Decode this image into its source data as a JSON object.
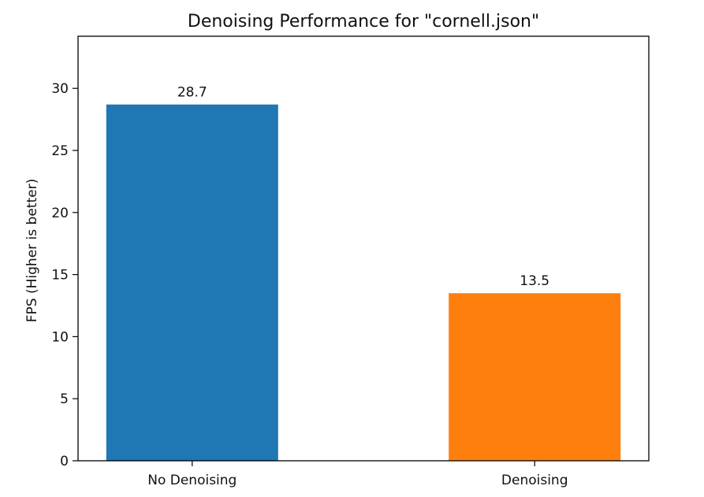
{
  "chart_data": {
    "type": "bar",
    "title": "Denoising Performance for \"cornell.json\"",
    "xlabel": "",
    "ylabel": "FPS (Higher is better)",
    "categories": [
      "No Denoising",
      "Denoising"
    ],
    "values": [
      28.7,
      13.5
    ],
    "data_labels": [
      "28.7",
      "13.5"
    ],
    "colors": [
      "#1f77b4",
      "#ff7f0e"
    ],
    "ylim": [
      0,
      34.2
    ],
    "yticks": [
      0,
      5,
      10,
      15,
      20,
      25,
      30
    ],
    "grid": false,
    "legend": "none"
  }
}
